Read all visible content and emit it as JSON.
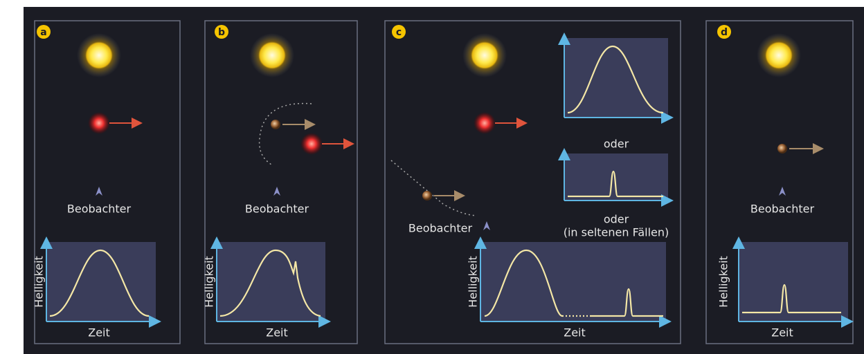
{
  "panels": [
    {
      "label": "a",
      "observer": "Beobachter",
      "y_axis": "Helligkeit",
      "x_axis": "Zeit"
    },
    {
      "label": "b",
      "observer": "Beobachter",
      "y_axis": "Helligkeit",
      "x_axis": "Zeit"
    },
    {
      "label": "c",
      "observer": "Beobachter",
      "y_axis": "Helligkeit",
      "x_axis": "Zeit",
      "notes": [
        "oder",
        "oder",
        "(in seltenen Fällen)"
      ]
    },
    {
      "label": "d",
      "observer": "Beobachter",
      "y_axis": "Helligkeit",
      "x_axis": "Zeit"
    }
  ]
}
